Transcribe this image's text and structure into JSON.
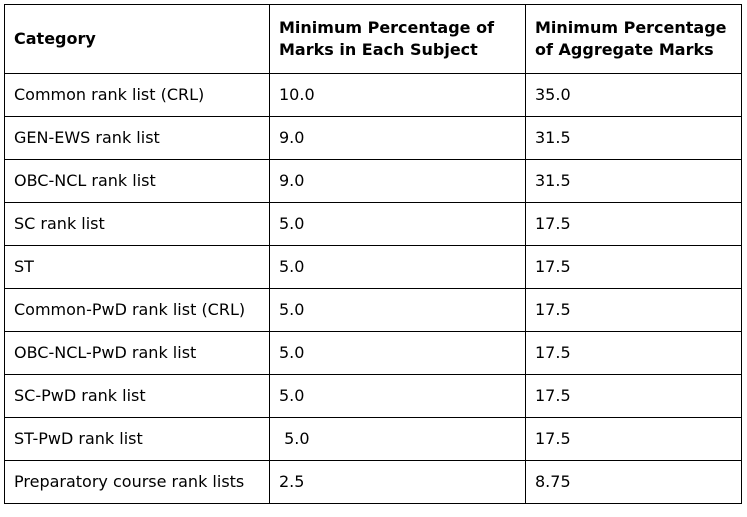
{
  "table": {
    "headers": [
      "Category",
      "Minimum Percentage of Marks in Each Subject",
      "Minimum Percentage of Aggregate Marks"
    ],
    "rows": [
      [
        "Common rank list (CRL)",
        "10.0",
        "35.0"
      ],
      [
        "GEN-EWS rank list",
        "9.0",
        "31.5"
      ],
      [
        "OBC-NCL rank list",
        "9.0",
        "31.5"
      ],
      [
        "SC rank list",
        "5.0",
        "17.5"
      ],
      [
        "ST",
        "5.0",
        "17.5"
      ],
      [
        "Common-PwD rank list (CRL)",
        "5.0",
        "17.5"
      ],
      [
        "OBC-NCL-PwD rank list",
        "5.0",
        "17.5"
      ],
      [
        "SC-PwD rank list",
        "5.0",
        "17.5"
      ],
      [
        "ST-PwD rank list",
        " 5.0",
        "17.5"
      ],
      [
        "Preparatory course rank lists",
        "2.5",
        "8.75"
      ]
    ]
  }
}
